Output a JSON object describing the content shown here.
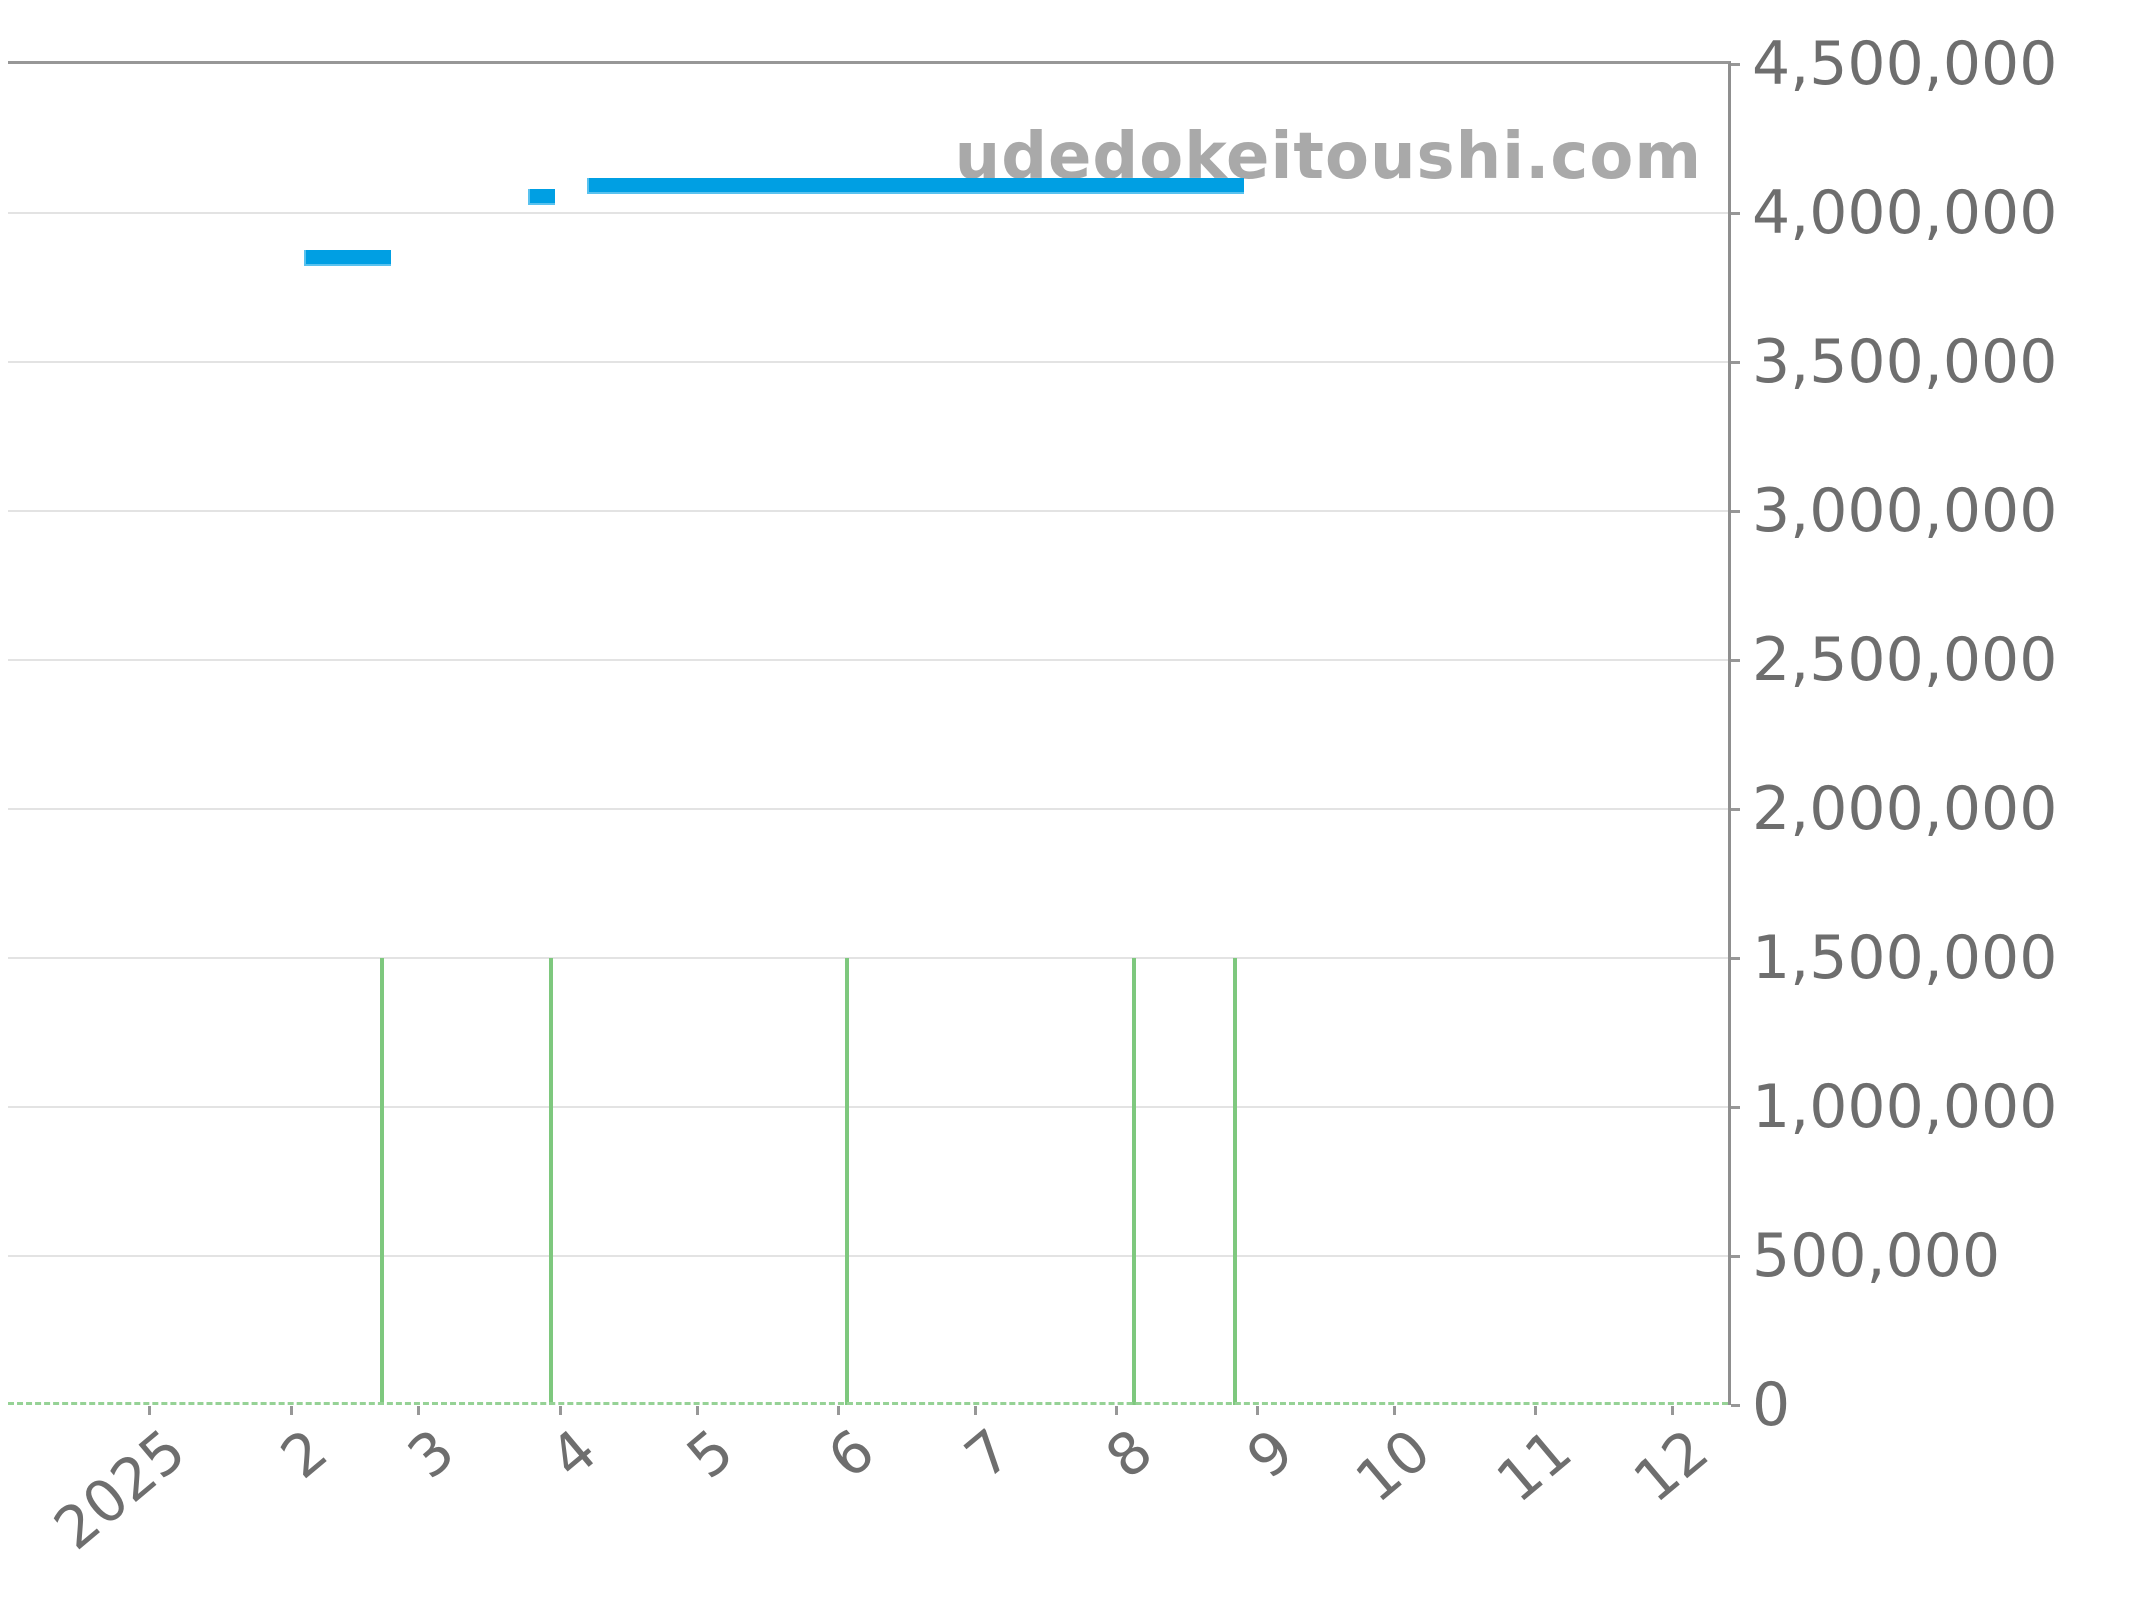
{
  "watermark": {
    "text": "udedokeitoushi.com"
  },
  "colors": {
    "background": "#ffffff",
    "stripe": "#f5f5f5",
    "gridline": "#e3e3e3",
    "axis": "#979797",
    "label": "#6e6e6e",
    "price": "#009fe3",
    "price_edge": "#59c2ef",
    "volume": "#7ec87e",
    "baseline": "#96d296",
    "watermark": "#a9a9a9"
  },
  "chart_data": {
    "type": "line",
    "title": "",
    "watermark_text": "udedokeitoushi.com",
    "legend": false,
    "grid": true,
    "x_axis": {
      "domain_start": "2024-12-01",
      "domain_end": "2025-12-13",
      "stripes": "alternating month bands, gray first (Dec 2024)",
      "ticks": [
        {
          "date": "2025-01-01",
          "label": "2025"
        },
        {
          "date": "2025-02-01",
          "label": "2"
        },
        {
          "date": "2025-03-01",
          "label": "3"
        },
        {
          "date": "2025-04-01",
          "label": "4"
        },
        {
          "date": "2025-05-01",
          "label": "5"
        },
        {
          "date": "2025-06-01",
          "label": "6"
        },
        {
          "date": "2025-07-01",
          "label": "7"
        },
        {
          "date": "2025-08-01",
          "label": "8"
        },
        {
          "date": "2025-09-01",
          "label": "9"
        },
        {
          "date": "2025-10-01",
          "label": "10"
        },
        {
          "date": "2025-11-01",
          "label": "11"
        },
        {
          "date": "2025-12-01",
          "label": "12"
        }
      ]
    },
    "y_axis": {
      "position": "right",
      "min": 0,
      "max": 4500000,
      "step": 500000,
      "tick_labels": [
        "4,500,000",
        "4,000,000",
        "3,500,000",
        "3,000,000",
        "2,500,000",
        "2,000,000",
        "1,500,000",
        "1,000,000",
        "500,000",
        "0"
      ]
    },
    "series": [
      {
        "name": "price",
        "type": "segments",
        "segments": [
          {
            "start": "2025-02-04",
            "end": "2025-02-23",
            "value": 3850000
          },
          {
            "start": "2025-03-25",
            "end": "2025-03-31",
            "value": 4055000
          },
          {
            "start": "2025-04-07",
            "end": "2025-08-29",
            "value": 4090000
          }
        ]
      },
      {
        "name": "volume",
        "type": "bars",
        "bars": [
          {
            "date": "2025-02-21",
            "value": 1500000
          },
          {
            "date": "2025-03-30",
            "value": 1500000
          },
          {
            "date": "2025-06-03",
            "value": 1500000
          },
          {
            "date": "2025-08-05",
            "value": 1500000
          },
          {
            "date": "2025-08-27",
            "value": 1500000
          }
        ]
      }
    ]
  }
}
